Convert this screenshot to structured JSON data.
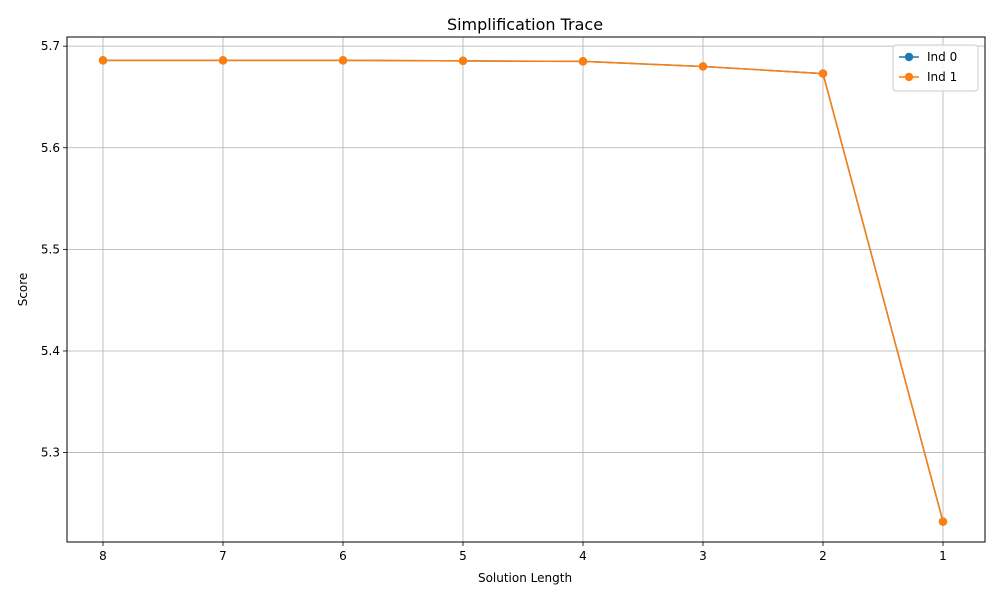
{
  "chart_data": {
    "type": "line",
    "title": "Simplification Trace",
    "xlabel": "Solution Length",
    "ylabel": "Score",
    "x": [
      8,
      7,
      6,
      5,
      4,
      3,
      2,
      1
    ],
    "x_reversed": true,
    "xlim": [
      8.3,
      0.65
    ],
    "ylim": [
      5.212,
      5.709
    ],
    "x_ticks": [
      "8",
      "7",
      "6",
      "5",
      "4",
      "3",
      "2",
      "1"
    ],
    "y_ticks": [
      5.3,
      5.4,
      5.5,
      5.6,
      5.7
    ],
    "grid": true,
    "legend_position": "top-right",
    "series": [
      {
        "name": "Ind 0",
        "color": "#1f77b4",
        "values": [
          5.686,
          5.686,
          5.686,
          5.6855,
          5.685,
          5.68,
          5.673,
          5.232
        ]
      },
      {
        "name": "Ind 1",
        "color": "#ff7f0e",
        "values": [
          5.686,
          5.686,
          5.686,
          5.6855,
          5.685,
          5.68,
          5.673,
          5.232
        ]
      }
    ]
  }
}
